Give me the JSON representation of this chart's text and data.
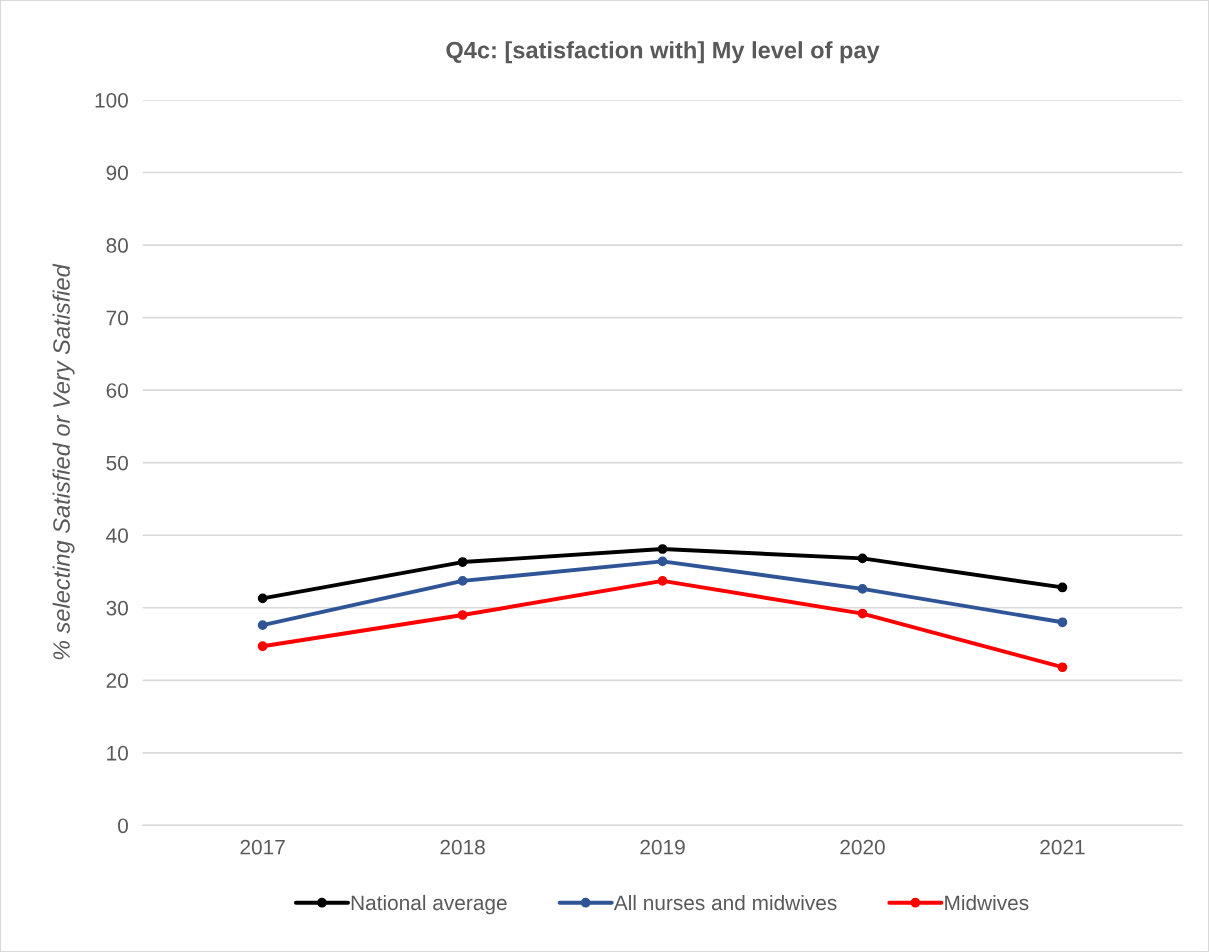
{
  "chart_data": {
    "type": "line",
    "title": "Q4c: [satisfaction with] My level of pay",
    "ylabel": "% selecting Satisfied or Very Satisfied",
    "categories": [
      "2017",
      "2018",
      "2019",
      "2020",
      "2021"
    ],
    "series": [
      {
        "name": "National average",
        "color": "#000000",
        "values": [
          31.3,
          36.3,
          38.1,
          36.8,
          32.8
        ]
      },
      {
        "name": "All nurses and midwives",
        "color": "#2f5597",
        "values": [
          27.6,
          33.7,
          36.4,
          32.6,
          28.0
        ]
      },
      {
        "name": "Midwives",
        "color": "#ff0000",
        "values": [
          24.7,
          29.0,
          33.7,
          29.2,
          21.8
        ]
      }
    ],
    "ylim": [
      0,
      100
    ],
    "yticks": [
      0,
      10,
      20,
      30,
      40,
      50,
      60,
      70,
      80,
      90,
      100
    ],
    "grid": "y",
    "legend": "bottom",
    "marker": "circle",
    "line_style": "solid"
  }
}
